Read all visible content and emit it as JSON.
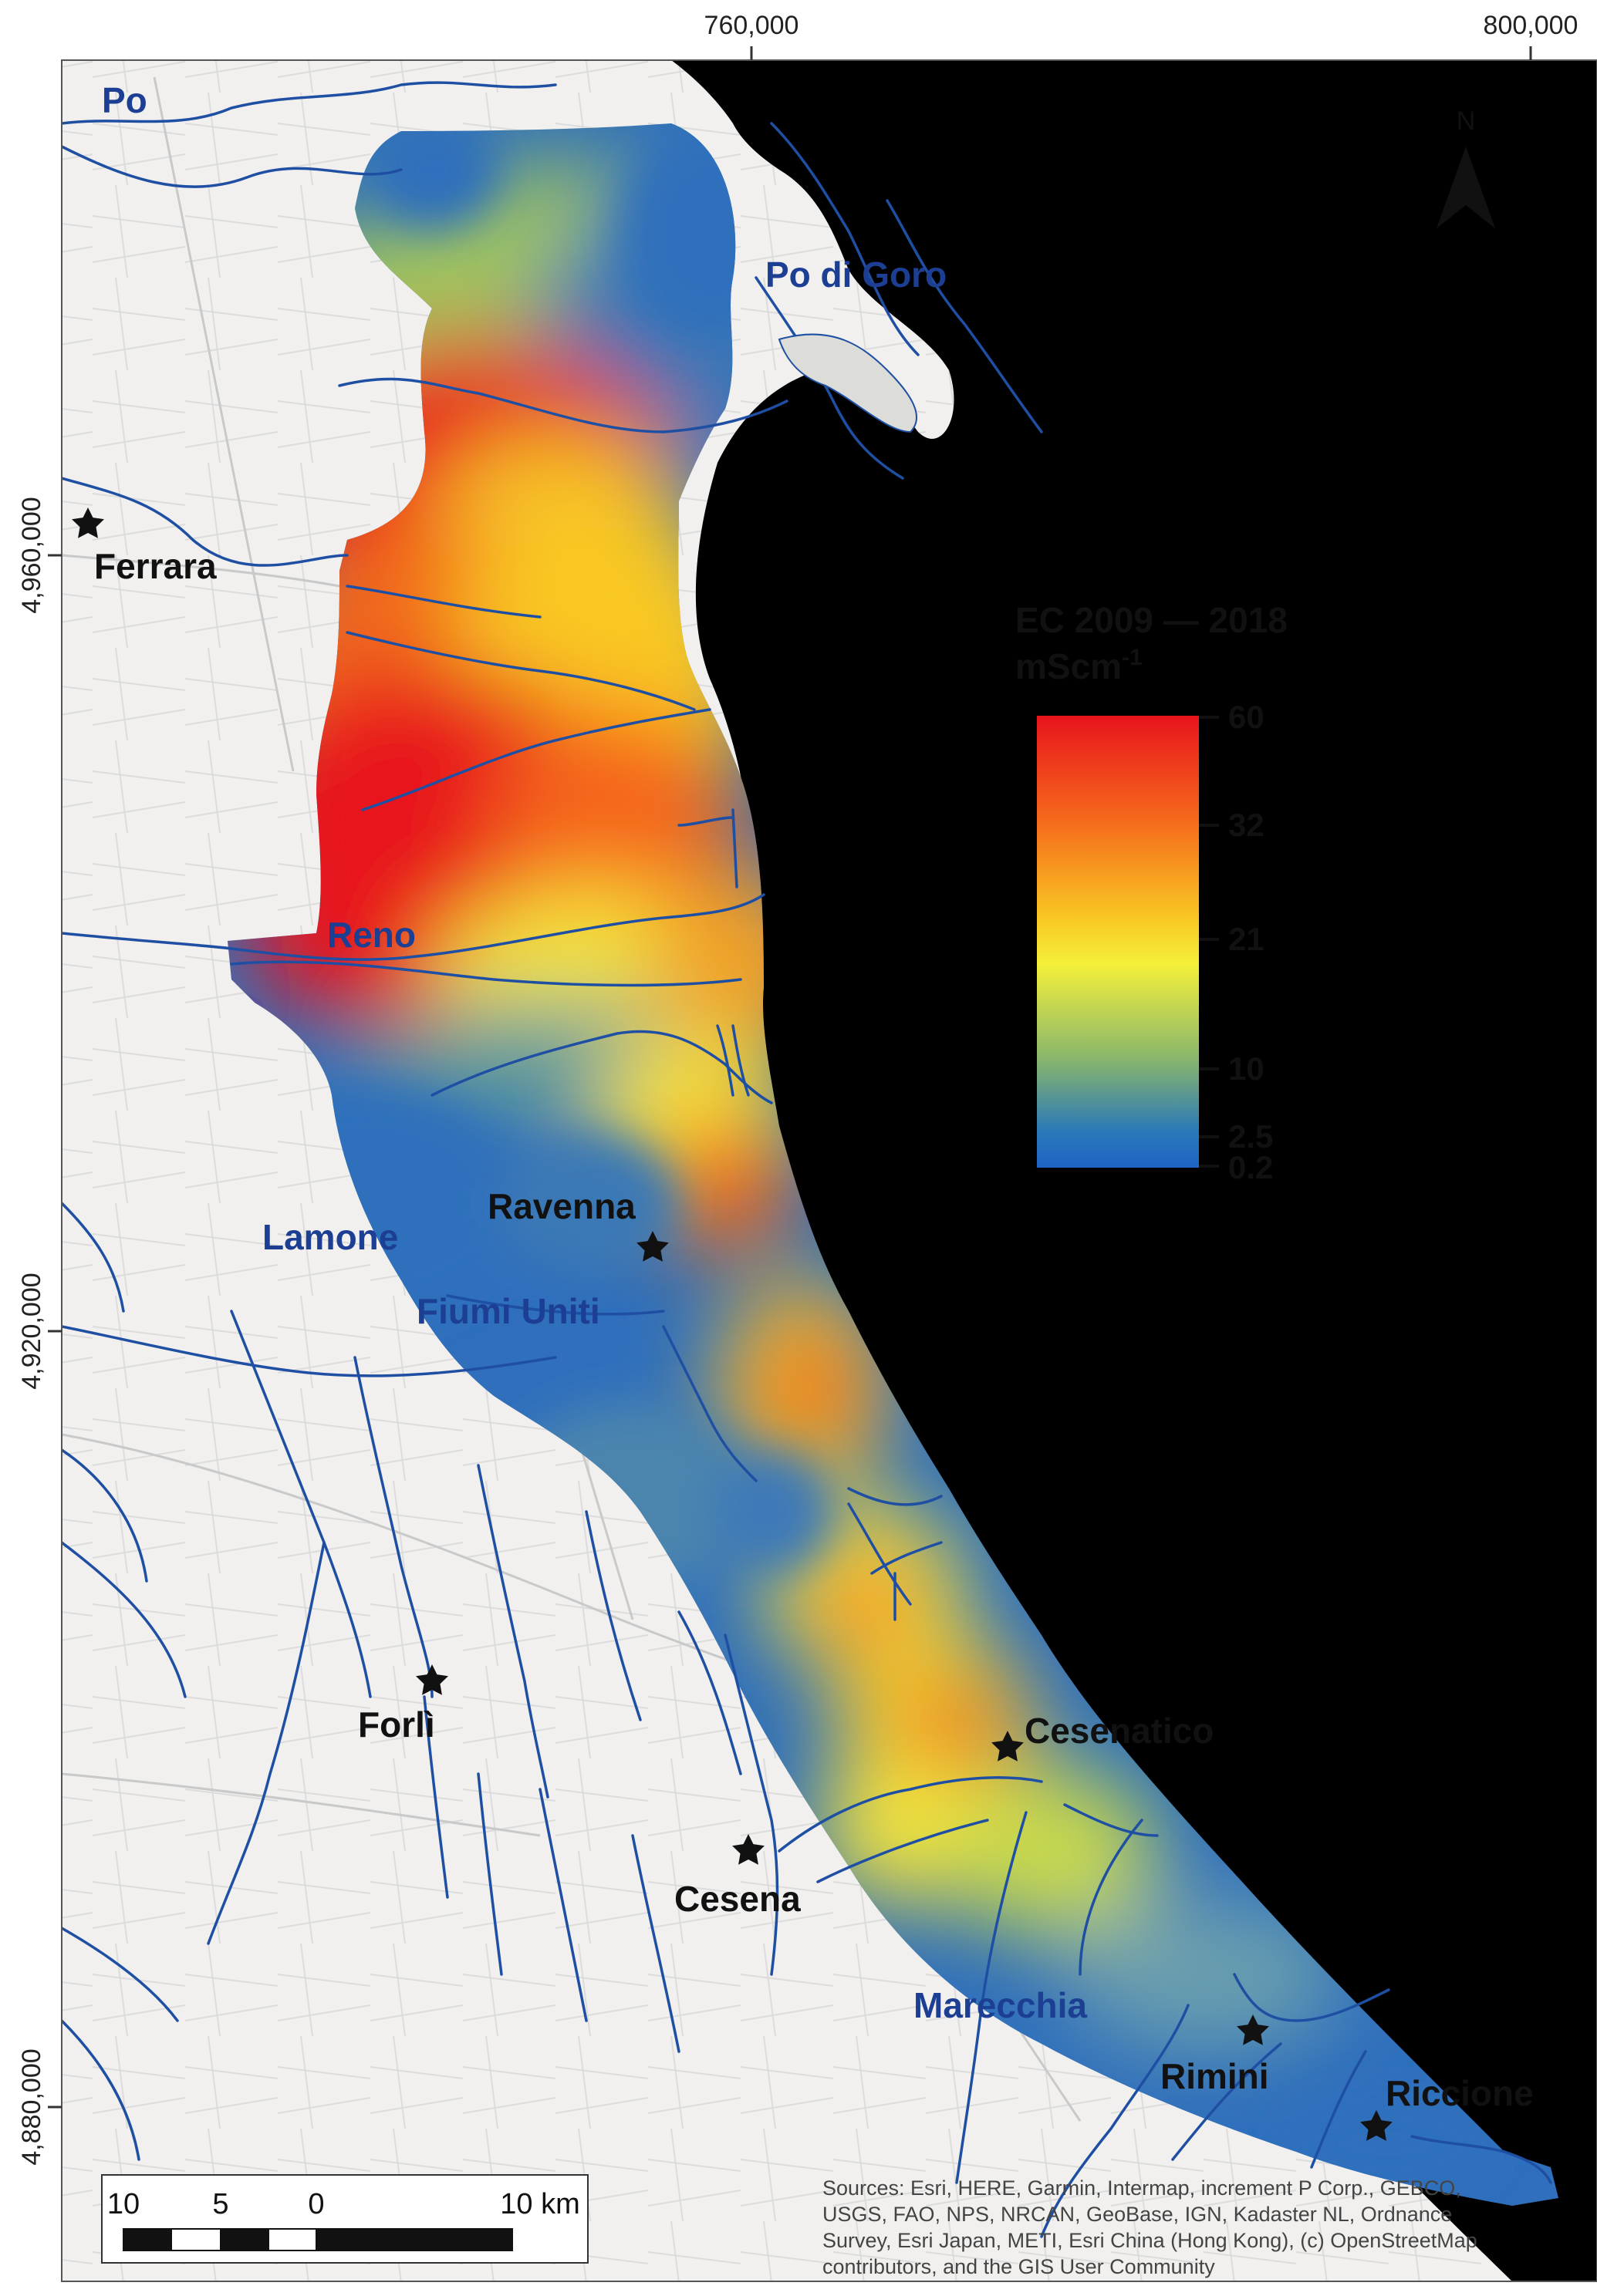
{
  "map": {
    "grid_labels": {
      "x": [
        "760,000",
        "800,000"
      ],
      "y": [
        "4,960,000",
        "4,920,000",
        "4,880,000"
      ]
    },
    "north_arrow": {
      "letter": "N",
      "icon": "north-arrow-icon"
    },
    "rivers": [
      "Po",
      "Po di Goro",
      "Reno",
      "Lamone",
      "Fiumi Uniti",
      "Marecchia"
    ],
    "cities": [
      "Ferrara",
      "Ravenna",
      "Forlì",
      "Cesena",
      "Cesenatico",
      "Rimini",
      "Riccione"
    ],
    "legend": {
      "title": "EC 2009 — 2018",
      "unit": "mScm",
      "unit_superscript": "-1",
      "ticks": [
        "60",
        "32",
        "21",
        "10",
        "2.5",
        "0.2"
      ],
      "colors": [
        "#e8141c",
        "#f5651c",
        "#f9c823",
        "#f4f03a",
        "#88b66c",
        "#2a78b8",
        "#1f63c6"
      ]
    },
    "scale_bar": {
      "labels": [
        "10",
        "5",
        "0",
        "10 km"
      ]
    },
    "attribution": {
      "lines": [
        "Sources: Esri, HERE, Garmin, Intermap, increment P Corp., GEBCO,",
        "USGS, FAO, NPS, NRCAN, GeoBase, IGN, Kadaster NL, Ordnance",
        "Survey, Esri Japan, METI, Esri China (Hong Kong), (c) OpenStreetMap",
        "contributors, and the GIS User Community"
      ]
    },
    "colors": {
      "sea": "#bfe6f6",
      "land": "#f1f0ee",
      "river": "#1f4fa3",
      "river_label": "#1d3f93",
      "city_label": "#111111"
    }
  }
}
